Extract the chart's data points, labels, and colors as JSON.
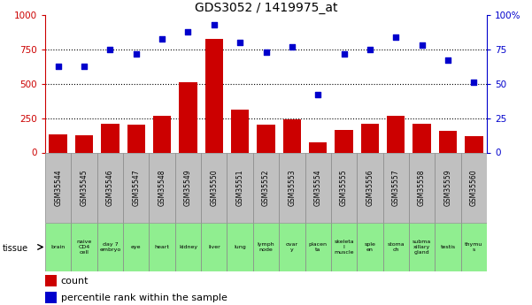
{
  "title": "GDS3052 / 1419975_at",
  "samples": [
    "GSM35544",
    "GSM35545",
    "GSM35546",
    "GSM35547",
    "GSM35548",
    "GSM35549",
    "GSM35550",
    "GSM35551",
    "GSM35552",
    "GSM35553",
    "GSM35554",
    "GSM35555",
    "GSM35556",
    "GSM35557",
    "GSM35558",
    "GSM35559",
    "GSM35560"
  ],
  "tissues": [
    "brain",
    "naive\nCD4\ncell",
    "day 7\nembryо",
    "eye",
    "heart",
    "kidney",
    "liver",
    "lung",
    "lymph\nnode",
    "ovar\ny",
    "placen\nta",
    "skeleta\nl\nmuscle",
    "sple\nen",
    "stoma\nch",
    "subma\nxillary\ngland",
    "testis",
    "thymu\ns"
  ],
  "tissue_colors": [
    "#90EE90",
    "#90EE90",
    "#90EE90",
    "#90EE90",
    "#90EE90",
    "#90EE90",
    "#90EE90",
    "#90EE90",
    "#90EE90",
    "#90EE90",
    "#90EE90",
    "#90EE90",
    "#90EE90",
    "#90EE90",
    "#90EE90",
    "#90EE90",
    "#90EE90"
  ],
  "counts": [
    130,
    125,
    210,
    205,
    270,
    510,
    830,
    310,
    200,
    240,
    75,
    165,
    210,
    270,
    210,
    155,
    120
  ],
  "percentiles": [
    63,
    63,
    75,
    72,
    83,
    88,
    93,
    80,
    73,
    77,
    42,
    72,
    75,
    84,
    78,
    67,
    51
  ],
  "bar_color": "#CC0000",
  "dot_color": "#0000CC",
  "ylim_left": [
    0,
    1000
  ],
  "ylim_right": [
    0,
    100
  ],
  "yticks_left": [
    0,
    250,
    500,
    750,
    1000
  ],
  "yticks_right": [
    0,
    25,
    50,
    75,
    100
  ],
  "ytick_labels_right": [
    "0",
    "25",
    "50",
    "75",
    "100%"
  ],
  "gridlines": [
    250,
    500,
    750
  ],
  "background_color": "#ffffff",
  "sample_bg_color": "#C0C0C0"
}
